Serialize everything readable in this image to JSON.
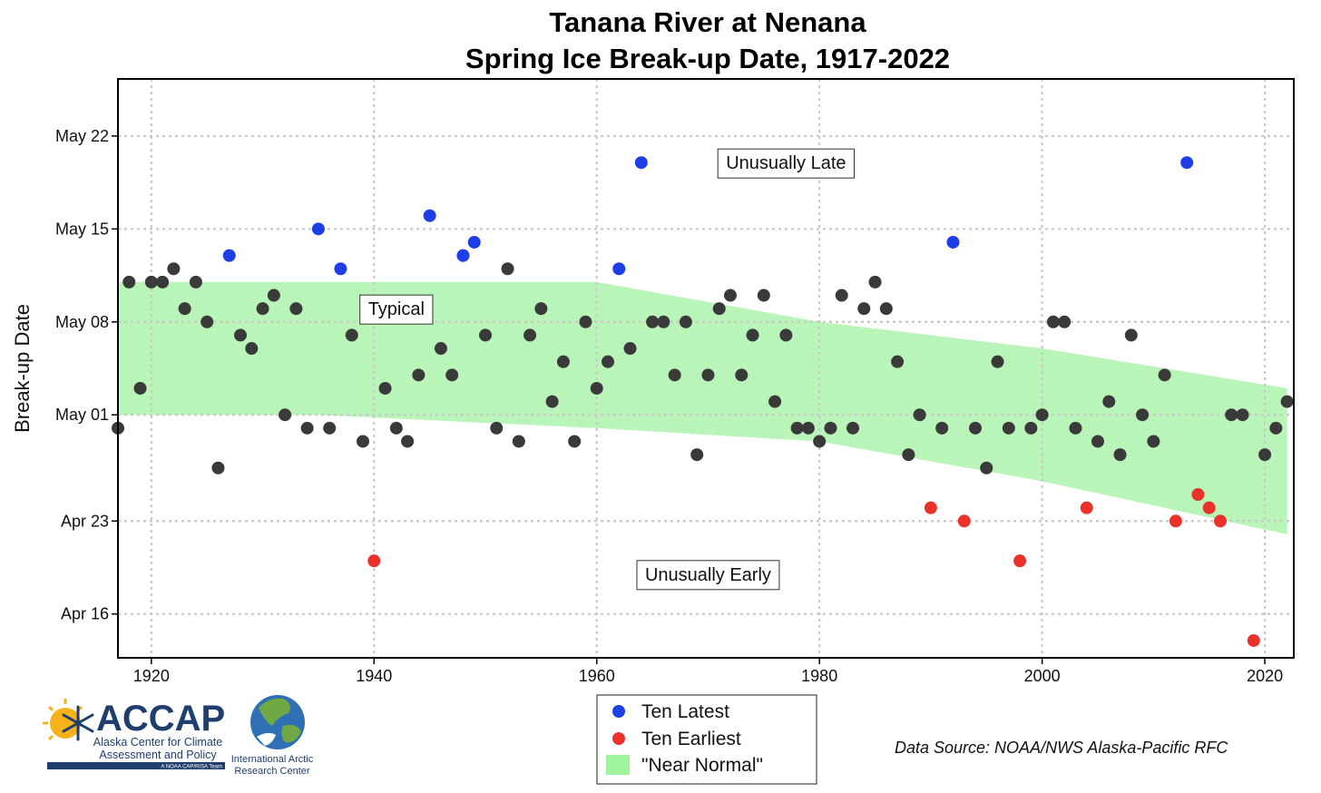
{
  "chart_data": {
    "type": "scatter",
    "title": [
      "Tanana River at Nenana",
      "Spring Ice Break-up Date, 1917-2022"
    ],
    "xlabel": "",
    "ylabel": "Break-up Date",
    "xlim": [
      1917,
      2022.6
    ],
    "ylim_day_of_year": [
      102.7,
      146.3
    ],
    "x_ticks": [
      1920,
      1940,
      1960,
      1980,
      2000,
      2020
    ],
    "y_ticks": [
      {
        "label": "Apr 16",
        "doy": 106
      },
      {
        "label": "Apr 23",
        "doy": 113
      },
      {
        "label": "May 01",
        "doy": 121
      },
      {
        "label": "May 08",
        "doy": 128
      },
      {
        "label": "May 15",
        "doy": 135
      },
      {
        "label": "May 22",
        "doy": 142
      }
    ],
    "grid": true,
    "series": [
      {
        "name": "",
        "color": "#3a3a3a",
        "points": [
          {
            "x": 1917,
            "y": "Apr 30"
          },
          {
            "x": 1918,
            "y": "May 11"
          },
          {
            "x": 1919,
            "y": "May 03"
          },
          {
            "x": 1920,
            "y": "May 11"
          },
          {
            "x": 1921,
            "y": "May 11"
          },
          {
            "x": 1922,
            "y": "May 12"
          },
          {
            "x": 1923,
            "y": "May 09"
          },
          {
            "x": 1924,
            "y": "May 11"
          },
          {
            "x": 1925,
            "y": "May 08"
          },
          {
            "x": 1926,
            "y": "Apr 27"
          },
          {
            "x": 1928,
            "y": "May 07"
          },
          {
            "x": 1929,
            "y": "May 06"
          },
          {
            "x": 1930,
            "y": "May 09"
          },
          {
            "x": 1931,
            "y": "May 10"
          },
          {
            "x": 1932,
            "y": "May 01"
          },
          {
            "x": 1933,
            "y": "May 09"
          },
          {
            "x": 1934,
            "y": "Apr 30"
          },
          {
            "x": 1936,
            "y": "Apr 30"
          },
          {
            "x": 1938,
            "y": "May 07"
          },
          {
            "x": 1939,
            "y": "Apr 29"
          },
          {
            "x": 1941,
            "y": "May 03"
          },
          {
            "x": 1942,
            "y": "Apr 30"
          },
          {
            "x": 1943,
            "y": "Apr 29"
          },
          {
            "x": 1944,
            "y": "May 04"
          },
          {
            "x": 1946,
            "y": "May 06"
          },
          {
            "x": 1947,
            "y": "May 04"
          },
          {
            "x": 1950,
            "y": "May 07"
          },
          {
            "x": 1951,
            "y": "Apr 30"
          },
          {
            "x": 1952,
            "y": "May 12"
          },
          {
            "x": 1953,
            "y": "Apr 29"
          },
          {
            "x": 1954,
            "y": "May 07"
          },
          {
            "x": 1955,
            "y": "May 09"
          },
          {
            "x": 1956,
            "y": "May 02"
          },
          {
            "x": 1957,
            "y": "May 05"
          },
          {
            "x": 1958,
            "y": "Apr 29"
          },
          {
            "x": 1959,
            "y": "May 08"
          },
          {
            "x": 1960,
            "y": "May 03"
          },
          {
            "x": 1961,
            "y": "May 05"
          },
          {
            "x": 1963,
            "y": "May 06"
          },
          {
            "x": 1965,
            "y": "May 08"
          },
          {
            "x": 1966,
            "y": "May 08"
          },
          {
            "x": 1967,
            "y": "May 04"
          },
          {
            "x": 1968,
            "y": "May 08"
          },
          {
            "x": 1969,
            "y": "Apr 28"
          },
          {
            "x": 1970,
            "y": "May 04"
          },
          {
            "x": 1971,
            "y": "May 09"
          },
          {
            "x": 1972,
            "y": "May 10"
          },
          {
            "x": 1973,
            "y": "May 04"
          },
          {
            "x": 1974,
            "y": "May 07"
          },
          {
            "x": 1975,
            "y": "May 10"
          },
          {
            "x": 1976,
            "y": "May 02"
          },
          {
            "x": 1977,
            "y": "May 07"
          },
          {
            "x": 1978,
            "y": "Apr 30"
          },
          {
            "x": 1979,
            "y": "Apr 30"
          },
          {
            "x": 1980,
            "y": "Apr 29"
          },
          {
            "x": 1981,
            "y": "Apr 30"
          },
          {
            "x": 1982,
            "y": "May 10"
          },
          {
            "x": 1983,
            "y": "Apr 30"
          },
          {
            "x": 1984,
            "y": "May 09"
          },
          {
            "x": 1985,
            "y": "May 11"
          },
          {
            "x": 1986,
            "y": "May 09"
          },
          {
            "x": 1987,
            "y": "May 05"
          },
          {
            "x": 1988,
            "y": "Apr 28"
          },
          {
            "x": 1989,
            "y": "May 01"
          },
          {
            "x": 1991,
            "y": "Apr 30"
          },
          {
            "x": 1994,
            "y": "Apr 30"
          },
          {
            "x": 1995,
            "y": "Apr 27"
          },
          {
            "x": 1996,
            "y": "May 05"
          },
          {
            "x": 1997,
            "y": "Apr 30"
          },
          {
            "x": 1999,
            "y": "Apr 30"
          },
          {
            "x": 2000,
            "y": "May 01"
          },
          {
            "x": 2001,
            "y": "May 08"
          },
          {
            "x": 2002,
            "y": "May 08"
          },
          {
            "x": 2003,
            "y": "Apr 30"
          },
          {
            "x": 2005,
            "y": "Apr 29"
          },
          {
            "x": 2006,
            "y": "May 02"
          },
          {
            "x": 2007,
            "y": "Apr 28"
          },
          {
            "x": 2008,
            "y": "May 07"
          },
          {
            "x": 2009,
            "y": "May 01"
          },
          {
            "x": 2010,
            "y": "Apr 29"
          },
          {
            "x": 2011,
            "y": "May 04"
          },
          {
            "x": 2017,
            "y": "May 01"
          },
          {
            "x": 2018,
            "y": "May 01"
          },
          {
            "x": 2020,
            "y": "Apr 28"
          },
          {
            "x": 2021,
            "y": "Apr 30"
          },
          {
            "x": 2022,
            "y": "May 02"
          }
        ]
      },
      {
        "name": "Ten Latest",
        "color": "#1f3fe6",
        "points": [
          {
            "x": 1927,
            "y": "May 13"
          },
          {
            "x": 1935,
            "y": "May 15"
          },
          {
            "x": 1937,
            "y": "May 12"
          },
          {
            "x": 1945,
            "y": "May 16"
          },
          {
            "x": 1948,
            "y": "May 13"
          },
          {
            "x": 1949,
            "y": "May 14"
          },
          {
            "x": 1962,
            "y": "May 12"
          },
          {
            "x": 1964,
            "y": "May 20"
          },
          {
            "x": 1992,
            "y": "May 14"
          },
          {
            "x": 2013,
            "y": "May 20"
          }
        ]
      },
      {
        "name": "Ten Earliest",
        "color": "#e8322a",
        "points": [
          {
            "x": 1940,
            "y": "Apr 20"
          },
          {
            "x": 1990,
            "y": "Apr 24"
          },
          {
            "x": 1993,
            "y": "Apr 23"
          },
          {
            "x": 1998,
            "y": "Apr 20"
          },
          {
            "x": 2004,
            "y": "Apr 24"
          },
          {
            "x": 2012,
            "y": "Apr 23"
          },
          {
            "x": 2014,
            "y": "Apr 25"
          },
          {
            "x": 2015,
            "y": "Apr 24"
          },
          {
            "x": 2016,
            "y": "Apr 23"
          },
          {
            "x": 2019,
            "y": "Apr 14"
          }
        ]
      }
    ],
    "near_normal_band": {
      "name": "\"Near Normal\"",
      "color": "#b9f5b9",
      "upper": [
        [
          1917,
          "May 11"
        ],
        [
          1935,
          "May 11"
        ],
        [
          1960,
          "May 11"
        ],
        [
          1980,
          "May 08"
        ],
        [
          2000,
          "May 06"
        ],
        [
          2022,
          "May 03"
        ]
      ],
      "lower": [
        [
          1917,
          "May 01"
        ],
        [
          1935,
          "May 01"
        ],
        [
          1960,
          "Apr 30"
        ],
        [
          1980,
          "Apr 29"
        ],
        [
          2000,
          "Apr 26"
        ],
        [
          2022,
          "Apr 22"
        ]
      ]
    },
    "annotations": [
      {
        "text": "Unusually Late",
        "x": 1977,
        "y": "May 20"
      },
      {
        "text": "Typical",
        "x": 1942,
        "y": "May 09"
      },
      {
        "text": "Unusually Early",
        "x": 1970,
        "y": "Apr 19"
      }
    ]
  },
  "legend": [
    {
      "label": "Ten Latest",
      "kind": "dot",
      "color": "#1f3fe6"
    },
    {
      "label": "Ten Earliest",
      "kind": "dot",
      "color": "#e8322a"
    },
    {
      "label": "\"Near Normal\"",
      "kind": "square",
      "color": "#9ef59e"
    }
  ],
  "data_source": "Data Source: NOAA/NWS Alaska-Pacific RFC",
  "logos": {
    "accap_name": "ACCAP",
    "accap_line1": "Alaska Center for Climate",
    "accap_line2": "Assessment and Policy",
    "accap_tag": "A NOAA CAP/RISA Team",
    "iarc_line1": "International Arctic",
    "iarc_line2": "Research Center"
  }
}
